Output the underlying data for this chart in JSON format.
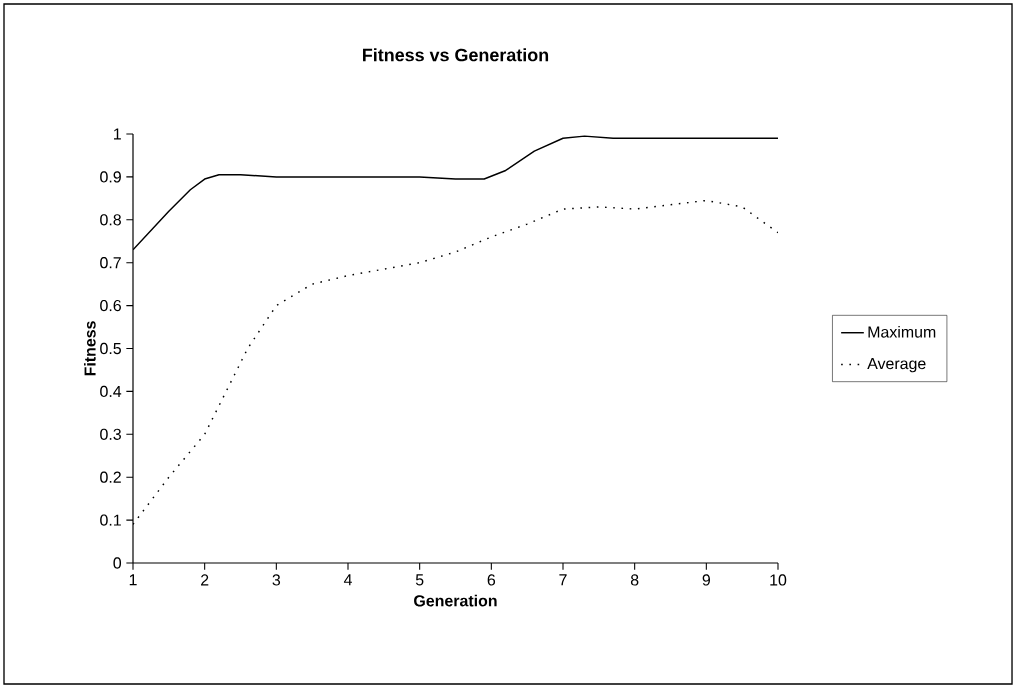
{
  "chart_data": {
    "type": "line",
    "title": "Fitness vs Generation",
    "xlabel": "Generation",
    "ylabel": "Fitness",
    "xlim": [
      1,
      10
    ],
    "xticks": [
      1,
      2,
      3,
      4,
      5,
      6,
      7,
      8,
      9,
      10
    ],
    "ylim": [
      0,
      1
    ],
    "yticks": [
      0,
      0.1,
      0.2,
      0.3,
      0.4,
      0.5,
      0.6,
      0.7,
      0.8,
      0.9,
      1
    ],
    "grid": false,
    "legend": "right",
    "marker": "none",
    "series": [
      {
        "name": "Maximum",
        "color": "#000000",
        "line_style": "solid",
        "x": [
          1,
          1.5,
          1.8,
          2,
          2.2,
          2.5,
          3,
          4,
          5,
          5.5,
          5.9,
          6.2,
          6.6,
          7,
          7.3,
          7.7,
          8,
          9,
          10
        ],
        "values": [
          0.73,
          0.82,
          0.87,
          0.895,
          0.905,
          0.905,
          0.9,
          0.9,
          0.9,
          0.895,
          0.895,
          0.915,
          0.96,
          0.99,
          0.995,
          0.99,
          0.99,
          0.99,
          0.99
        ]
      },
      {
        "name": "Average",
        "color": "#000000",
        "line_style": "dotted",
        "x": [
          1,
          1.5,
          2,
          2.3,
          2.6,
          3,
          3.5,
          4,
          4.5,
          5,
          5.5,
          6,
          6.5,
          7,
          7.5,
          8,
          8.5,
          9,
          9.5,
          10
        ],
        "values": [
          0.09,
          0.2,
          0.3,
          0.4,
          0.5,
          0.6,
          0.65,
          0.67,
          0.685,
          0.7,
          0.725,
          0.76,
          0.79,
          0.825,
          0.83,
          0.825,
          0.835,
          0.845,
          0.83,
          0.77
        ]
      }
    ]
  }
}
